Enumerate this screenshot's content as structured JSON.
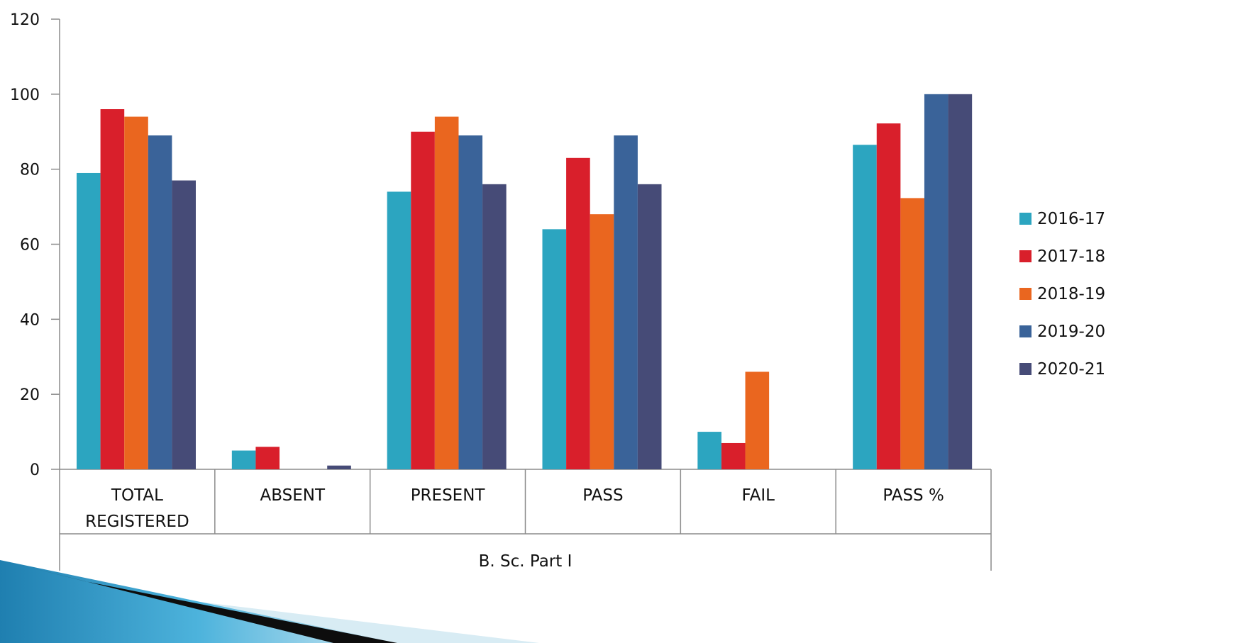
{
  "chart_data": {
    "type": "bar",
    "group_label": "B. Sc. Part I",
    "categories": [
      "TOTAL REGISTERED",
      "ABSENT",
      "PRESENT",
      "PASS",
      "FAIL",
      "PASS %"
    ],
    "ylim": [
      0,
      120
    ],
    "yticks": [
      0,
      20,
      40,
      60,
      80,
      100,
      120
    ],
    "legend_position": "right",
    "grid": false,
    "series": [
      {
        "name": "2016-17",
        "color": "#2ca5c0",
        "values": [
          79,
          5,
          74,
          64,
          10,
          86.5
        ]
      },
      {
        "name": "2017-18",
        "color": "#d91f2b",
        "values": [
          96,
          6,
          90,
          83,
          7,
          92.2
        ]
      },
      {
        "name": "2018-19",
        "color": "#ea661f",
        "values": [
          94,
          0,
          94,
          68,
          26,
          72.3
        ]
      },
      {
        "name": "2019-20",
        "color": "#3a6399",
        "values": [
          89,
          0,
          89,
          89,
          0,
          100
        ]
      },
      {
        "name": "2020-21",
        "color": "#464b77",
        "values": [
          77,
          1,
          76,
          76,
          0,
          100
        ]
      }
    ]
  }
}
